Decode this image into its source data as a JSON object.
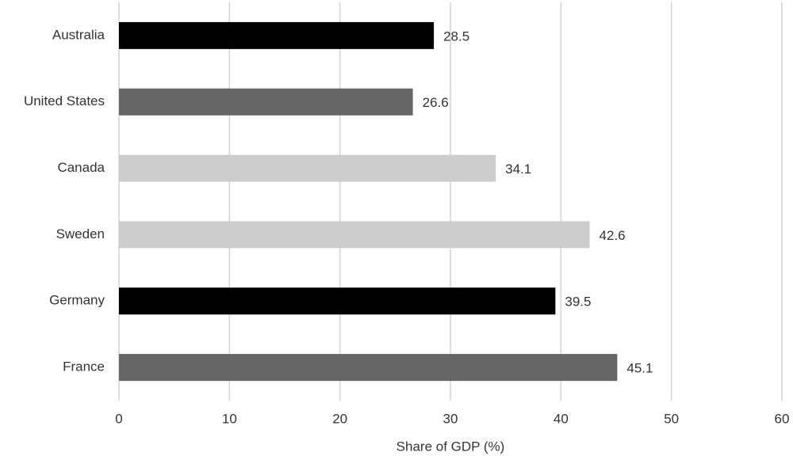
{
  "chart_data": {
    "type": "bar",
    "orientation": "horizontal",
    "x_label": "Share of GDP (%)",
    "categories": [
      "Australia",
      "United States",
      "Canada",
      "Sweden",
      "Germany",
      "France"
    ],
    "values": [
      28.5,
      26.6,
      34.1,
      42.6,
      39.5,
      45.1
    ],
    "colors": [
      "#000000",
      "#666666",
      "#cccccc",
      "#cccccc",
      "#000000",
      "#666666"
    ],
    "xlim": [
      0,
      60
    ],
    "xticks": [
      0,
      10,
      20,
      30,
      40,
      50,
      60
    ],
    "grid": true
  }
}
